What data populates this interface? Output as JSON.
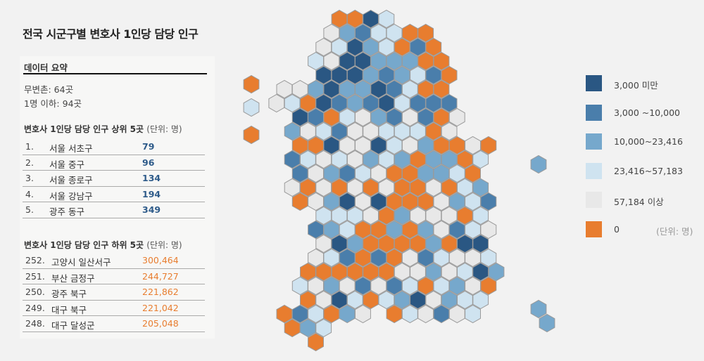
{
  "title": "전국 시군구별 변호사 1인당 담당 인구",
  "summary": {
    "heading": "데이터 요약",
    "no_lawyer": "무변촌: 64곳",
    "under_one": "1명 이하: 94곳"
  },
  "top5": {
    "heading": "변호사 1인당 담당 인구 상위 5곳",
    "unit": "(단위: 명)",
    "rows": [
      {
        "rank": "1.",
        "name": "서울 서초구",
        "value": "79"
      },
      {
        "rank": "2.",
        "name": "서울 중구",
        "value": "96"
      },
      {
        "rank": "3.",
        "name": "서울 종로구",
        "value": "134"
      },
      {
        "rank": "4.",
        "name": "서울 강남구",
        "value": "194"
      },
      {
        "rank": "5.",
        "name": "광주 동구",
        "value": "349"
      }
    ]
  },
  "bottom5": {
    "heading": "변호사 1인당 담당 인구 하위 5곳",
    "unit": "(단위: 명)",
    "rows": [
      {
        "rank": "252.",
        "name": "고양시 일산서구",
        "value": "300,464"
      },
      {
        "rank": "251.",
        "name": "부산 금정구",
        "value": "244,727"
      },
      {
        "rank": "250.",
        "name": "광주 북구",
        "value": "221,862"
      },
      {
        "rank": "249.",
        "name": "대구 북구",
        "value": "221,042"
      },
      {
        "rank": "248.",
        "name": "대구 달성군",
        "value": "205,048"
      }
    ]
  },
  "legend": {
    "unit": "(단위: 명)",
    "items": [
      {
        "key": "D",
        "label": "3,000 미만",
        "color": "#2a5783"
      },
      {
        "key": "M",
        "label": "3,000 ~10,000",
        "color": "#4a7eab"
      },
      {
        "key": "L",
        "label": "10,000~23,416",
        "color": "#76a8cc"
      },
      {
        "key": "P",
        "label": "23,416~57,183",
        "color": "#cfe3f0"
      },
      {
        "key": "G",
        "label": "57,184 이상",
        "color": "#e8e8e8"
      },
      {
        "key": "O",
        "label": "0",
        "color": "#e87d2f"
      }
    ]
  },
  "chart_data": {
    "type": "heatmap",
    "description_of_encoding": "hex tile map; each row lists start column index and one class key per tile ('.' = empty)",
    "rows": [
      {
        "start": 0,
        "cells": "OODP"
      },
      {
        "start": 0,
        "cells": "GLMPPOO"
      },
      {
        "start": -1,
        "cells": "GPDLPOMO"
      },
      {
        "start": -1,
        "cells": "PGDDLLLOO"
      },
      {
        "start": -1,
        "cells": "DDDLMLPMO"
      },
      {
        "start": -3,
        "cells": "GGLDLLDMPOO"
      },
      {
        "start": -4,
        "cells": "GPODMLMDPMMM"
      },
      {
        "start": -2,
        "cells": "DMOPGLMGMOG"
      },
      {
        "start": -3,
        "cells": "LGPMGGPPPOG"
      },
      {
        "start": -2,
        "cells": "OODGGDPGLOOGO"
      },
      {
        "start": -3,
        "cells": "MPGPGLPLOLLOP"
      },
      {
        "start": -2,
        "cells": "MGLMPGOOLLPO"
      },
      {
        "start": -3,
        "cells": "GOGOGOGOOGOPL"
      },
      {
        "start": -2,
        "cells": "OGLDGDOOOGLPM"
      },
      {
        "start": -1,
        "cells": "PPPGOLGGGOP"
      },
      {
        "start": -1,
        "cells": "MLPOOLOLGMPG"
      },
      {
        "start": -1,
        "cells": "GDLOOOOLODD"
      },
      {
        "start": -1,
        "cells": "GPMOMOGMPGGP"
      },
      {
        "start": -2,
        "cells": "OOOOOOGGLGPDL"
      },
      {
        "start": -2,
        "cells": "PGLGMGMPOPLGO"
      },
      {
        "start": -2,
        "cells": "OGDPOPLDGLPP"
      },
      {
        "start": -3,
        "cells": "OMPOLG.OPGMGP"
      },
      {
        "start": -3,
        "cells": "OLP"
      },
      {
        "start": -1,
        "cells": "O"
      }
    ],
    "islands": [
      "O",
      "P",
      "O",
      "L",
      "L",
      "L"
    ]
  }
}
